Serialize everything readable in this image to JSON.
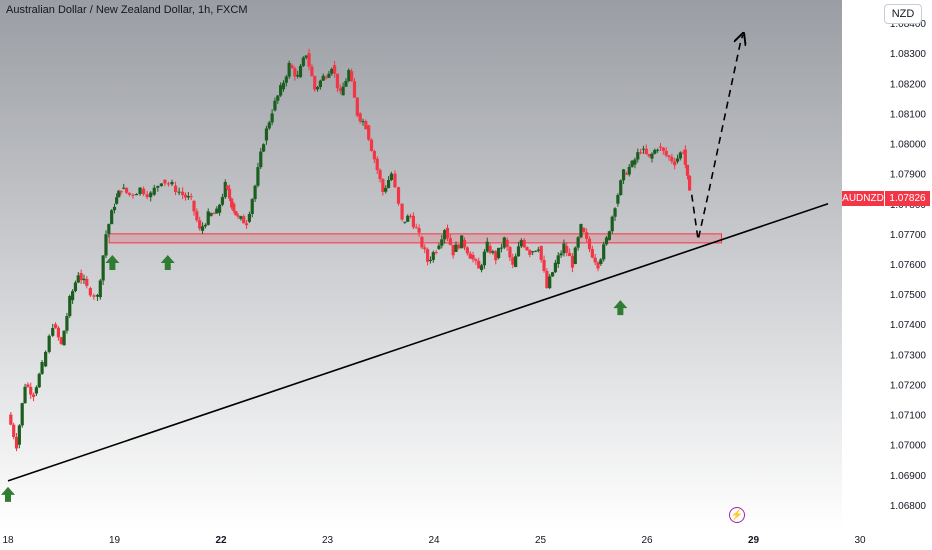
{
  "header": {
    "title": "Australian Dollar / New Zealand Dollar, 1h, FXCM",
    "currency_button": "NZD"
  },
  "price_tag": {
    "symbol": "AUDNZD",
    "value": "1.07826"
  },
  "icons": {
    "lightning": "lightning-icon"
  },
  "colors": {
    "up": "#1b5e20",
    "down": "#f23645",
    "zone_fill": "rgba(242,54,69,0.18)",
    "zone_stroke": "#f23645",
    "trendline": "#000000",
    "arrow": "#2e7d32",
    "bg_top": "#9a9da3",
    "bg_bottom": "#ffffff"
  },
  "chart_data": {
    "type": "candlestick",
    "title": "Australian Dollar / New Zealand Dollar, 1h, FXCM",
    "symbol": "AUDNZD",
    "last_price": 1.07826,
    "y_tick_labels": [
      "1.06800",
      "1.06900",
      "1.07000",
      "1.07100",
      "1.07200",
      "1.07300",
      "1.07400",
      "1.07500",
      "1.07600",
      "1.07700",
      "1.07800",
      "1.07900",
      "1.08000",
      "1.08100",
      "1.08200",
      "1.08300",
      "1.08400"
    ],
    "ylim": [
      1.0675,
      1.0843
    ],
    "x_tick_labels": [
      "18",
      "19",
      "22",
      "23",
      "24",
      "25",
      "26",
      "29",
      "30"
    ],
    "x_tick_index": [
      0,
      1,
      2,
      3,
      4,
      5,
      6,
      7,
      8
    ],
    "bold_x_ticks": [
      "22",
      "29"
    ],
    "xlim": [
      0,
      8
    ],
    "series": [
      {
        "kind": "close_path",
        "points": [
          [
            0.0,
            1.071
          ],
          [
            0.08,
            1.07
          ],
          [
            0.16,
            1.072
          ],
          [
            0.24,
            1.0717
          ],
          [
            0.32,
            1.0726
          ],
          [
            0.42,
            1.074
          ],
          [
            0.5,
            1.0733
          ],
          [
            0.58,
            1.0748
          ],
          [
            0.66,
            1.0757
          ],
          [
            0.74,
            1.0752
          ],
          [
            0.84,
            1.0749
          ],
          [
            0.92,
            1.077
          ],
          [
            1.0,
            1.078
          ],
          [
            1.06,
            1.0785
          ],
          [
            1.14,
            1.0783
          ],
          [
            1.24,
            1.0785
          ],
          [
            1.34,
            1.0783
          ],
          [
            1.44,
            1.0788
          ],
          [
            1.54,
            1.0786
          ],
          [
            1.64,
            1.0783
          ],
          [
            1.72,
            1.0781
          ],
          [
            1.8,
            1.0771
          ],
          [
            1.88,
            1.0776
          ],
          [
            1.96,
            1.0777
          ],
          [
            2.04,
            1.0786
          ],
          [
            2.1,
            1.078
          ],
          [
            2.16,
            1.0775
          ],
          [
            2.24,
            1.0774
          ],
          [
            2.32,
            1.0786
          ],
          [
            2.4,
            1.0801
          ],
          [
            2.48,
            1.0811
          ],
          [
            2.56,
            1.0818
          ],
          [
            2.64,
            1.0826
          ],
          [
            2.72,
            1.0822
          ],
          [
            2.8,
            1.083
          ],
          [
            2.88,
            1.0818
          ],
          [
            2.96,
            1.0822
          ],
          [
            3.04,
            1.0826
          ],
          [
            3.12,
            1.0816
          ],
          [
            3.2,
            1.0824
          ],
          [
            3.28,
            1.081
          ],
          [
            3.36,
            1.0806
          ],
          [
            3.44,
            1.0795
          ],
          [
            3.52,
            1.0784
          ],
          [
            3.6,
            1.079
          ],
          [
            3.7,
            1.0774
          ],
          [
            3.78,
            1.0776
          ],
          [
            3.86,
            1.0769
          ],
          [
            3.94,
            1.0761
          ],
          [
            4.02,
            1.0765
          ],
          [
            4.1,
            1.0772
          ],
          [
            4.18,
            1.0764
          ],
          [
            4.26,
            1.0768
          ],
          [
            4.34,
            1.0763
          ],
          [
            4.42,
            1.0758
          ],
          [
            4.5,
            1.0766
          ],
          [
            4.58,
            1.0762
          ],
          [
            4.66,
            1.0768
          ],
          [
            4.74,
            1.0759
          ],
          [
            4.82,
            1.0768
          ],
          [
            4.9,
            1.0764
          ],
          [
            4.98,
            1.0766
          ],
          [
            5.06,
            1.0752
          ],
          [
            5.14,
            1.076
          ],
          [
            5.22,
            1.0766
          ],
          [
            5.3,
            1.076
          ],
          [
            5.38,
            1.0772
          ],
          [
            5.46,
            1.0765
          ],
          [
            5.54,
            1.076
          ],
          [
            5.62,
            1.0768
          ],
          [
            5.7,
            1.078
          ],
          [
            5.78,
            1.079
          ],
          [
            5.86,
            1.0793
          ],
          [
            5.94,
            1.0798
          ],
          [
            6.02,
            1.0795
          ],
          [
            6.1,
            1.0799
          ],
          [
            6.18,
            1.0796
          ],
          [
            6.26,
            1.0794
          ],
          [
            6.34,
            1.0798
          ],
          [
            6.4,
            1.0783
          ]
        ]
      }
    ],
    "support_zone": {
      "from": 1.0769,
      "to": 1.077,
      "x_from": 0.95,
      "x_to": 6.7
    },
    "trendline": {
      "x1": 0.0,
      "y1": 1.0688,
      "x2": 7.7,
      "y2": 1.078
    },
    "projection": [
      [
        6.42,
        1.0783
      ],
      [
        6.48,
        1.0768
      ],
      [
        6.58,
        1.0784
      ],
      [
        6.88,
        1.0834
      ],
      [
        6.9,
        1.0836
      ]
    ],
    "markers": [
      {
        "label": "up-arrow",
        "x": 0.0,
        "y": 1.0686
      },
      {
        "label": "up-arrow",
        "x": 0.98,
        "y": 1.0763
      },
      {
        "label": "up-arrow",
        "x": 1.5,
        "y": 1.0763
      },
      {
        "label": "up-arrow",
        "x": 5.75,
        "y": 1.0748
      }
    ],
    "grid": false,
    "legend": "none"
  }
}
